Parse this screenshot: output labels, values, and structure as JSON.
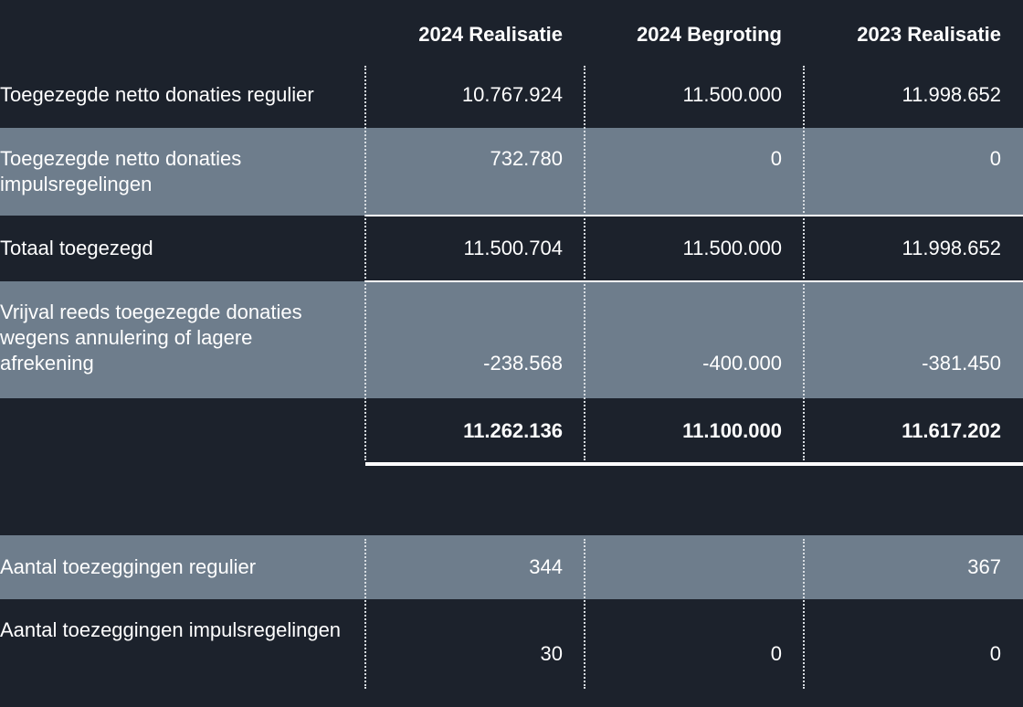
{
  "columns": [
    "2024 Realisatie",
    "2024 Begroting",
    "2023 Realisatie"
  ],
  "rows": [
    {
      "label": "Toegezegde netto donaties regulier",
      "values": [
        "10.767.924",
        "11.500.000",
        "11.998.652"
      ]
    },
    {
      "label": "Toegezegde netto donaties impulsregelingen",
      "values": [
        "732.780",
        "0",
        "0"
      ]
    },
    {
      "label": "Totaal toegezegd",
      "values": [
        "11.500.704",
        "11.500.000",
        "11.998.652"
      ]
    },
    {
      "label": "Vrijval reeds toegezegde donaties wegens annulering of lagere afrekening",
      "values": [
        "-238.568",
        "-400.000",
        "-381.450"
      ]
    },
    {
      "label": "",
      "values": [
        "11.262.136",
        "11.100.000",
        "11.617.202"
      ]
    }
  ],
  "stats": [
    {
      "label": "Aantal toezeggingen regulier",
      "values": [
        "344",
        "",
        "367"
      ]
    },
    {
      "label": "Aantal toezeggingen impulsregelingen",
      "values": [
        "30",
        "0",
        "0"
      ]
    }
  ]
}
